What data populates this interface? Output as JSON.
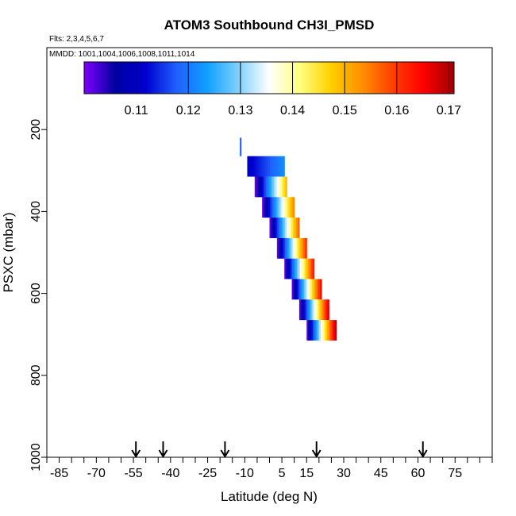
{
  "chart_data": {
    "type": "heatmap",
    "title": "ATOM3 Southbound CH3I_PMSD",
    "flights_note": "Flts: 2,3,4,5,6,7",
    "dates_note": "MMDD: 1001,1004,1006,1008,1011,1014",
    "xlabel": "Latitude (deg N)",
    "ylabel": "PSXC (mbar)",
    "xlim": [
      -90,
      90
    ],
    "ylim": [
      1000,
      0
    ],
    "x_ticks": [
      -85,
      -70,
      -55,
      -40,
      -25,
      -10,
      5,
      15,
      30,
      45,
      60,
      75
    ],
    "y_ticks": [
      200,
      400,
      600,
      800,
      1000
    ],
    "colorbar": {
      "min": 0.1,
      "max": 0.171,
      "ticks": [
        "0.11",
        "0.12",
        "0.13",
        "0.14",
        "0.15",
        "0.16",
        "0.17"
      ],
      "colors": [
        "#8000ff",
        "#0000a0",
        "#0000d0",
        "#2060ff",
        "#10a0ff",
        "#80d0ff",
        "#ffffff",
        "#ffff80",
        "#ffd000",
        "#ff9000",
        "#ff4000",
        "#ff0000",
        "#a00000"
      ]
    },
    "arrows_latitude": [
      -54,
      -43,
      -18,
      19,
      62
    ],
    "cells": [
      {
        "lat0": -12,
        "lat1": -11.5,
        "p0": 220,
        "p1": 265,
        "v0": 0.118,
        "v1": 0.118
      },
      {
        "lat0": -9,
        "lat1": 6,
        "p0": 265,
        "p1": 315,
        "v0": 0.11,
        "v1": 0.122
      },
      {
        "lat0": -6,
        "lat1": 7,
        "p0": 315,
        "p1": 365,
        "v0": 0.1,
        "v1": 0.15
      },
      {
        "lat0": -3,
        "lat1": 10,
        "p0": 365,
        "p1": 415,
        "v0": 0.1,
        "v1": 0.155
      },
      {
        "lat0": 0,
        "lat1": 12,
        "p0": 415,
        "p1": 465,
        "v0": 0.1,
        "v1": 0.158
      },
      {
        "lat0": 3,
        "lat1": 15,
        "p0": 465,
        "p1": 515,
        "v0": 0.1,
        "v1": 0.162
      },
      {
        "lat0": 6,
        "lat1": 18,
        "p0": 515,
        "p1": 565,
        "v0": 0.1,
        "v1": 0.164
      },
      {
        "lat0": 9,
        "lat1": 21,
        "p0": 565,
        "p1": 615,
        "v0": 0.1,
        "v1": 0.166
      },
      {
        "lat0": 12,
        "lat1": 24,
        "p0": 615,
        "p1": 665,
        "v0": 0.1,
        "v1": 0.168
      },
      {
        "lat0": 15,
        "lat1": 27,
        "p0": 665,
        "p1": 715,
        "v0": 0.1,
        "v1": 0.171
      }
    ]
  }
}
